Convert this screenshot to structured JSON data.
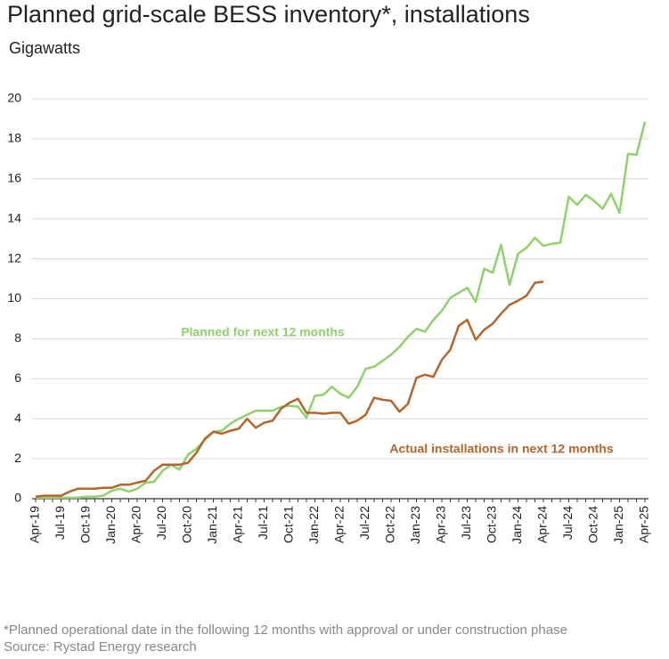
{
  "chart_data": {
    "type": "line",
    "title": "Planned grid-scale BESS inventory*, installations",
    "subtitle": "Gigawatts",
    "footnote": "*Planned operational date in the following 12 months with approval or under construction phase",
    "source": "Source: Rystad Energy research",
    "categories": [
      "Apr-19",
      null,
      null,
      "Jul-19",
      null,
      null,
      "Oct-19",
      null,
      null,
      "Jan-20",
      null,
      null,
      "Apr-20",
      null,
      null,
      "Jul-20",
      null,
      null,
      "Oct-20",
      null,
      null,
      "Jan-21",
      null,
      null,
      "Apr-21",
      null,
      null,
      "Jul-21",
      null,
      null,
      "Oct-21",
      null,
      null,
      "Jan-22",
      null,
      null,
      "Apr-22",
      null,
      null,
      "Jul-22",
      null,
      null,
      "Oct-22",
      null,
      null,
      "Jan-23",
      null,
      null,
      "Apr-23",
      null,
      null,
      "Jul-23",
      null,
      null,
      "Oct-23",
      null,
      null,
      "Jan-24",
      null,
      null,
      "Apr-24",
      null,
      null,
      "Jul-24",
      null,
      null,
      "Oct-24",
      null,
      null,
      "Jan-25",
      null,
      null,
      "Apr-25"
    ],
    "series": [
      {
        "name": "Planned for next 12 months",
        "color": "#8fd16a",
        "values": [
          0.05,
          0.05,
          0.05,
          0.05,
          0.05,
          0.05,
          0.1,
          0.1,
          0.15,
          0.4,
          0.5,
          0.35,
          0.5,
          0.8,
          0.85,
          1.4,
          1.7,
          1.45,
          2.2,
          2.5,
          2.95,
          3.35,
          3.4,
          3.75,
          4.0,
          4.2,
          4.4,
          4.4,
          4.4,
          4.6,
          4.65,
          4.6,
          4.05,
          5.15,
          5.2,
          5.6,
          5.25,
          5.05,
          5.6,
          6.5,
          6.6,
          6.9,
          7.2,
          7.6,
          8.1,
          8.5,
          8.35,
          8.95,
          9.4,
          10.05,
          10.3,
          10.55,
          9.85,
          11.5,
          11.3,
          12.7,
          10.7,
          12.25,
          12.55,
          13.05,
          12.65,
          12.75,
          12.8,
          15.1,
          14.7,
          15.2,
          14.9,
          14.5,
          15.25,
          14.3,
          17.25,
          17.2,
          18.85
        ]
      },
      {
        "name": "Actual installations in next 12 months",
        "color": "#b5652a",
        "values": [
          0.1,
          0.15,
          0.15,
          0.15,
          0.35,
          0.5,
          0.5,
          0.5,
          0.55,
          0.55,
          0.7,
          0.7,
          0.8,
          0.9,
          1.4,
          1.7,
          1.7,
          1.7,
          1.8,
          2.3,
          3.0,
          3.35,
          3.25,
          3.4,
          3.5,
          4.0,
          3.55,
          3.8,
          3.9,
          4.5,
          4.8,
          5.0,
          4.3,
          4.3,
          4.25,
          4.3,
          4.3,
          3.75,
          3.9,
          4.2,
          5.05,
          4.95,
          4.9,
          4.35,
          4.75,
          6.05,
          6.2,
          6.1,
          6.95,
          7.45,
          8.65,
          8.95,
          7.95,
          8.45,
          8.75,
          9.25,
          9.7,
          9.9,
          10.15,
          10.8,
          10.85,
          null,
          null,
          null,
          null,
          null,
          null,
          null,
          null,
          null,
          null,
          null,
          null
        ]
      }
    ],
    "ylim": [
      0,
      20
    ],
    "yticks": [
      0,
      2,
      4,
      6,
      8,
      10,
      12,
      14,
      16,
      18,
      20
    ],
    "grid": true
  }
}
